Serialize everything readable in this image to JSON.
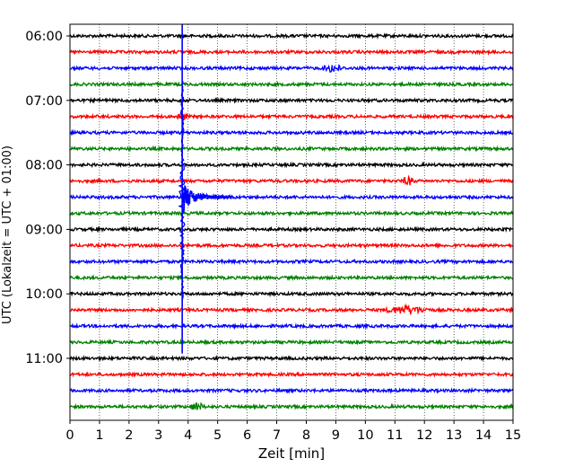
{
  "chart_data": {
    "type": "line",
    "title": "",
    "xlabel": "Zeit  [min]",
    "ylabel": "UTC (Lokalzeit = UTC + 01:00)",
    "xlim": [
      0,
      15
    ],
    "x_ticks": [
      0,
      1,
      2,
      3,
      4,
      5,
      6,
      7,
      8,
      9,
      10,
      11,
      12,
      13,
      14,
      15
    ],
    "x_tick_labels": [
      "0",
      "1",
      "2",
      "3",
      "4",
      "5",
      "6",
      "7",
      "8",
      "9",
      "10",
      "11",
      "12",
      "13",
      "14",
      "15"
    ],
    "y_tick_labels": [
      "06:00",
      "07:00",
      "08:00",
      "09:00",
      "10:00",
      "11:00"
    ],
    "trace_interval_min": 15,
    "grid": {
      "vertical": true,
      "style": "dotted"
    },
    "trace_colors": [
      "#000000",
      "#ff0000",
      "#0000ff",
      "#008000"
    ],
    "traces": [
      {
        "start": "06:00",
        "color": "#000000"
      },
      {
        "start": "06:15",
        "color": "#ff0000"
      },
      {
        "start": "06:30",
        "color": "#0000ff"
      },
      {
        "start": "06:45",
        "color": "#008000"
      },
      {
        "start": "07:00",
        "color": "#000000"
      },
      {
        "start": "07:15",
        "color": "#ff0000"
      },
      {
        "start": "07:30",
        "color": "#0000ff"
      },
      {
        "start": "07:45",
        "color": "#008000"
      },
      {
        "start": "08:00",
        "color": "#000000"
      },
      {
        "start": "08:15",
        "color": "#ff0000"
      },
      {
        "start": "08:30",
        "color": "#0000ff"
      },
      {
        "start": "08:45",
        "color": "#008000"
      },
      {
        "start": "09:00",
        "color": "#000000"
      },
      {
        "start": "09:15",
        "color": "#ff0000"
      },
      {
        "start": "09:30",
        "color": "#0000ff"
      },
      {
        "start": "09:45",
        "color": "#008000"
      },
      {
        "start": "10:00",
        "color": "#000000"
      },
      {
        "start": "10:15",
        "color": "#ff0000"
      },
      {
        "start": "10:30",
        "color": "#0000ff"
      },
      {
        "start": "10:45",
        "color": "#008000"
      },
      {
        "start": "11:00",
        "color": "#000000"
      },
      {
        "start": "11:15",
        "color": "#ff0000"
      },
      {
        "start": "11:30",
        "color": "#0000ff"
      },
      {
        "start": "11:45",
        "color": "#008000"
      }
    ],
    "events": [
      {
        "trace": "06:30",
        "x_start": 8.5,
        "x_end": 9.3,
        "type": "local burst"
      },
      {
        "trace": "07:15",
        "x_start": 3.6,
        "x_end": 4.0,
        "type": "precursor"
      },
      {
        "trace": "08:15",
        "x_start": 11.2,
        "x_end": 11.7,
        "type": "local burst"
      },
      {
        "trace": "08:30",
        "x_start": 3.8,
        "x_end": 5.5,
        "type": "main quake arrival"
      },
      {
        "trace": "10:15",
        "x_start": 10.5,
        "x_end": 12.3,
        "type": "local burst"
      },
      {
        "trace": "11:45",
        "x_start": 4.0,
        "x_end": 4.6,
        "type": "local burst"
      }
    ]
  }
}
